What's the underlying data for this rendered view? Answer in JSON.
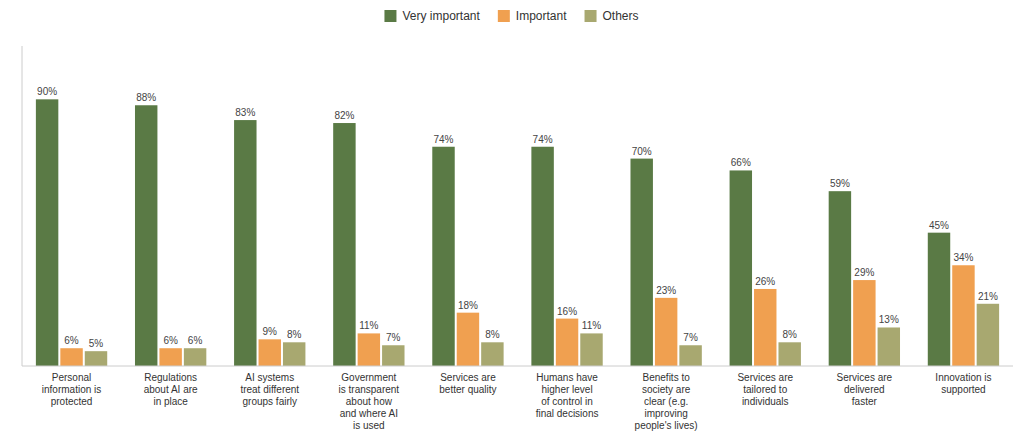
{
  "chart_data": {
    "type": "bar",
    "categories": [
      "Personal\ninformation is\nprotected",
      "Regulations\nabout AI are\nin place",
      "AI systems\ntreat different\ngroups fairly",
      "Government\nis transparent\nabout how\nand where AI\nis used",
      "Services are\nbetter quality",
      "Humans have\nhigher level\nof control in\nfinal decisions",
      "Benefits to\nsociety are\nclear (e.g.\nimproving\npeople's lives)",
      "Services are\ntailored to\nindividuals",
      "Services are\ndelivered\nfaster",
      "Innovation is\nsupported"
    ],
    "series": [
      {
        "name": "Very important",
        "color": "#5a7a45",
        "values": [
          90,
          88,
          83,
          82,
          74,
          74,
          70,
          66,
          59,
          45
        ],
        "value_labels": [
          "90%",
          "88%",
          "83%",
          "82%",
          "74%",
          "74%",
          "70%",
          "66%",
          "59%",
          "45%"
        ]
      },
      {
        "name": "Important",
        "color": "#f0a050",
        "values": [
          6,
          6,
          9,
          11,
          18,
          16,
          23,
          26,
          29,
          34
        ],
        "value_labels": [
          "6%",
          "6%",
          "9%",
          "11%",
          "18%",
          "16%",
          "23%",
          "26%",
          "29%",
          "34%"
        ]
      },
      {
        "name": "Others",
        "color": "#a8a870",
        "values": [
          5,
          6,
          8,
          7,
          8,
          11,
          7,
          8,
          13,
          21
        ],
        "value_labels": [
          "5%",
          "6%",
          "8%",
          "7%",
          "8%",
          "11%",
          "7%",
          "8%",
          "13%",
          "21%"
        ]
      }
    ],
    "ylim": [
      0,
      108
    ],
    "legend": "top",
    "data_labels": true,
    "tick_labels": "x",
    "grid": false
  }
}
